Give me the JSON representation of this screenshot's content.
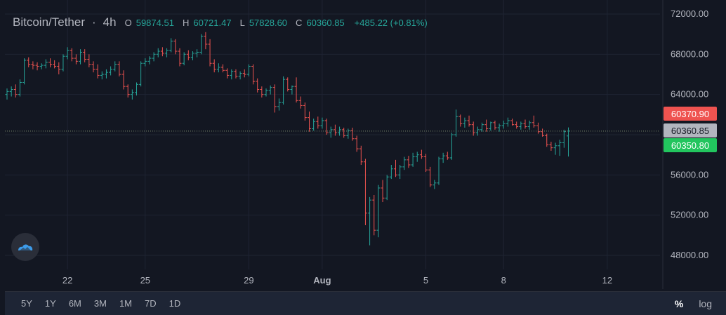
{
  "legend": {
    "symbol": "Bitcoin/Tether",
    "separator": "·",
    "timeframe": "4h",
    "open_label": "O",
    "open": "59874.51",
    "high_label": "H",
    "high": "60721.47",
    "low_label": "L",
    "low": "57828.60",
    "close_label": "C",
    "close": "60360.85",
    "change": "+485.22 (+0.81%)"
  },
  "colors": {
    "up": "#26a69a",
    "down": "#ef5350",
    "background": "#131722",
    "grid": "#1f2433",
    "up_label": "#22c55e"
  },
  "price_labels": [
    {
      "text": "60370.90",
      "value": 60370.9,
      "color": "#ef5350"
    },
    {
      "text": "60360.85",
      "value": 60360.85,
      "color": "#b2b5be"
    },
    {
      "text": "60350.80",
      "value": 60350.8,
      "color": "#22c55e"
    }
  ],
  "ranges": [
    "5Y",
    "1Y",
    "6M",
    "3M",
    "1M",
    "7D",
    "1D"
  ],
  "scale_buttons": {
    "percent": "%",
    "log": "log"
  },
  "logo_icon": "cloud-logo-icon",
  "chart_data": {
    "type": "ohlc",
    "ylim": [
      46000,
      73000
    ],
    "y_ticks": [
      48000,
      52000,
      56000,
      60000,
      64000,
      68000,
      72000
    ],
    "y_tick_labels": [
      "48000.00",
      "52000.00",
      "56000.00",
      "60000.00",
      "64000.00",
      "68000.00",
      "72000.00"
    ],
    "x_ticks": [
      {
        "label": "22",
        "index": 14
      },
      {
        "label": "25",
        "index": 32
      },
      {
        "label": "29",
        "index": 56
      },
      {
        "label": "Aug",
        "index": 73
      },
      {
        "label": "5",
        "index": 97
      },
      {
        "label": "8",
        "index": 115
      },
      {
        "label": "12",
        "index": 139
      }
    ],
    "current_price": 60360.85,
    "grid": true,
    "bars": [
      [
        64000,
        64600,
        63500,
        64300
      ],
      [
        64300,
        64800,
        63800,
        64500
      ],
      [
        64500,
        65000,
        63700,
        64000
      ],
      [
        64000,
        65500,
        63800,
        65200
      ],
      [
        65200,
        67600,
        65000,
        67400
      ],
      [
        67400,
        67700,
        66700,
        67000
      ],
      [
        67000,
        67300,
        66500,
        66900
      ],
      [
        66900,
        67200,
        66400,
        66800
      ],
      [
        66800,
        67100,
        66500,
        66900
      ],
      [
        66900,
        67500,
        66600,
        67200
      ],
      [
        67200,
        67600,
        66700,
        67000
      ],
      [
        67000,
        67400,
        66600,
        66800
      ],
      [
        66800,
        67200,
        66000,
        66500
      ],
      [
        66500,
        68000,
        66300,
        67800
      ],
      [
        67800,
        68700,
        67500,
        68400
      ],
      [
        68400,
        68600,
        67300,
        67600
      ],
      [
        67600,
        68000,
        67000,
        67300
      ],
      [
        67300,
        68500,
        67000,
        68200
      ],
      [
        68200,
        68500,
        67200,
        67500
      ],
      [
        67500,
        68000,
        66700,
        67000
      ],
      [
        67000,
        67300,
        66200,
        66500
      ],
      [
        66500,
        67000,
        65600,
        65900
      ],
      [
        65900,
        66300,
        65500,
        66000
      ],
      [
        66000,
        66500,
        65600,
        66200
      ],
      [
        66200,
        66800,
        65900,
        66500
      ],
      [
        66500,
        67300,
        66300,
        67000
      ],
      [
        67000,
        67300,
        65800,
        66000
      ],
      [
        66000,
        66400,
        64500,
        64800
      ],
      [
        64800,
        65000,
        63700,
        64000
      ],
      [
        64000,
        64500,
        63500,
        64200
      ],
      [
        64200,
        65200,
        63900,
        65000
      ],
      [
        65000,
        67300,
        64800,
        67100
      ],
      [
        67100,
        67600,
        66800,
        67300
      ],
      [
        67300,
        67800,
        67000,
        67600
      ],
      [
        67600,
        68200,
        67300,
        68000
      ],
      [
        68000,
        68600,
        67700,
        68300
      ],
      [
        68300,
        68700,
        67800,
        68100
      ],
      [
        68100,
        68600,
        67700,
        68400
      ],
      [
        68400,
        69600,
        68200,
        69300
      ],
      [
        69300,
        69500,
        68000,
        68300
      ],
      [
        68300,
        68600,
        66800,
        67100
      ],
      [
        67100,
        68200,
        66900,
        68000
      ],
      [
        68000,
        68400,
        67400,
        67700
      ],
      [
        67700,
        68300,
        67400,
        68100
      ],
      [
        68100,
        68500,
        67700,
        68200
      ],
      [
        68200,
        70000,
        68000,
        69800
      ],
      [
        69800,
        70200,
        68500,
        69000
      ],
      [
        69000,
        69500,
        66800,
        67100
      ],
      [
        67100,
        67500,
        66200,
        66500
      ],
      [
        66500,
        67100,
        66200,
        66700
      ],
      [
        66700,
        67000,
        66200,
        66400
      ],
      [
        66400,
        66600,
        65600,
        65900
      ],
      [
        65900,
        66500,
        65500,
        66300
      ],
      [
        66300,
        66500,
        65600,
        65800
      ],
      [
        65800,
        66300,
        65500,
        66100
      ],
      [
        66100,
        66500,
        65700,
        66000
      ],
      [
        66000,
        67000,
        65800,
        66800
      ],
      [
        66800,
        67000,
        65000,
        65300
      ],
      [
        65300,
        65600,
        64200,
        64500
      ],
      [
        64500,
        64800,
        63700,
        64000
      ],
      [
        64000,
        64600,
        63800,
        64400
      ],
      [
        64400,
        64900,
        64000,
        64700
      ],
      [
        64700,
        65000,
        62200,
        62800
      ],
      [
        62800,
        63600,
        62400,
        63200
      ],
      [
        63200,
        65800,
        63000,
        65500
      ],
      [
        65500,
        65700,
        64300,
        64500
      ],
      [
        64500,
        64900,
        64000,
        64800
      ],
      [
        64800,
        65700,
        63200,
        63400
      ],
      [
        63400,
        63800,
        62600,
        62900
      ],
      [
        62900,
        63200,
        61400,
        61700
      ],
      [
        61700,
        62300,
        60300,
        60600
      ],
      [
        60600,
        61600,
        60400,
        61300
      ],
      [
        61300,
        61800,
        60600,
        60900
      ],
      [
        60900,
        61700,
        60600,
        61400
      ],
      [
        61400,
        61600,
        60000,
        60200
      ],
      [
        60200,
        60800,
        59700,
        60500
      ],
      [
        60500,
        61000,
        59900,
        60200
      ],
      [
        60200,
        60800,
        59900,
        60500
      ],
      [
        60500,
        60700,
        59700,
        59900
      ],
      [
        59900,
        60600,
        59600,
        60400
      ],
      [
        60400,
        60700,
        59400,
        59600
      ],
      [
        59600,
        59900,
        58300,
        58600
      ],
      [
        58600,
        58900,
        57000,
        57300
      ],
      [
        57300,
        57600,
        51000,
        52200
      ],
      [
        52200,
        53800,
        49000,
        53500
      ],
      [
        53500,
        54000,
        50000,
        50500
      ],
      [
        50500,
        55000,
        49800,
        54700
      ],
      [
        54700,
        55500,
        53300,
        53700
      ],
      [
        53700,
        56000,
        53500,
        55800
      ],
      [
        55800,
        57000,
        55600,
        56600
      ],
      [
        56600,
        57500,
        55800,
        56000
      ],
      [
        56000,
        57000,
        55600,
        56800
      ],
      [
        56800,
        57800,
        56500,
        57500
      ],
      [
        57500,
        57900,
        56700,
        57000
      ],
      [
        57000,
        58200,
        56800,
        57800
      ],
      [
        57800,
        58300,
        57300,
        58000
      ],
      [
        58000,
        58500,
        57600,
        57800
      ],
      [
        57800,
        58100,
        56300,
        56500
      ],
      [
        56500,
        56800,
        54800,
        55000
      ],
      [
        55000,
        55500,
        54600,
        55200
      ],
      [
        55200,
        57800,
        55000,
        57600
      ],
      [
        57600,
        58200,
        57200,
        57900
      ],
      [
        57900,
        58300,
        57500,
        57700
      ],
      [
        57700,
        60200,
        57500,
        60000
      ],
      [
        60000,
        62500,
        59800,
        61800
      ],
      [
        61800,
        62000,
        60800,
        61100
      ],
      [
        61100,
        61700,
        60700,
        61400
      ],
      [
        61400,
        61900,
        60800,
        61000
      ],
      [
        61000,
        61300,
        59900,
        60200
      ],
      [
        60200,
        60800,
        59900,
        60500
      ],
      [
        60500,
        61200,
        60300,
        61000
      ],
      [
        61000,
        61500,
        60300,
        60600
      ],
      [
        60600,
        61300,
        60400,
        61200
      ],
      [
        61200,
        61400,
        60500,
        60700
      ],
      [
        60700,
        61100,
        60300,
        60900
      ],
      [
        60900,
        61400,
        60600,
        61100
      ],
      [
        61100,
        61700,
        60800,
        61400
      ],
      [
        61400,
        61600,
        60900,
        61000
      ],
      [
        61000,
        61300,
        60600,
        60800
      ],
      [
        60800,
        61300,
        60500,
        61100
      ],
      [
        61100,
        61500,
        60600,
        60800
      ],
      [
        60800,
        61400,
        60500,
        61200
      ],
      [
        61200,
        61900,
        60700,
        60900
      ],
      [
        60900,
        61200,
        60100,
        60300
      ],
      [
        60300,
        60600,
        59800,
        59900
      ],
      [
        59900,
        60100,
        58800,
        59000
      ],
      [
        59000,
        59300,
        58400,
        58700
      ],
      [
        58700,
        59200,
        58000,
        58900
      ],
      [
        58900,
        59500,
        57900,
        59200
      ],
      [
        59200,
        60500,
        58700,
        60300
      ],
      [
        59874.51,
        60721.47,
        57828.6,
        60360.85
      ]
    ]
  }
}
